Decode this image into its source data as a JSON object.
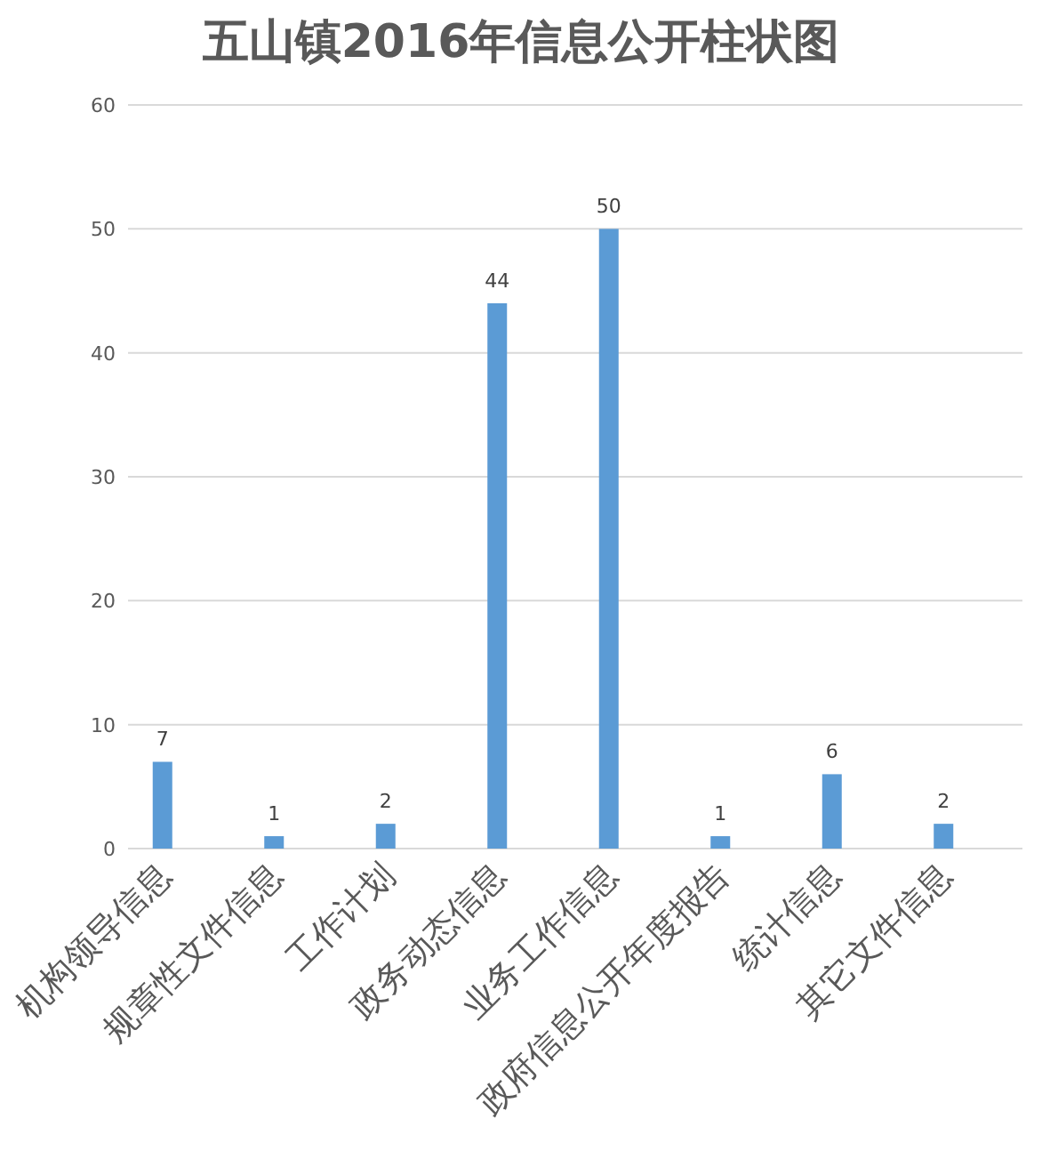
{
  "chart_data": {
    "type": "bar",
    "title": "五山镇2016年信息公开柱状图",
    "categories": [
      "机构领导信息",
      "规章性文件信息",
      "工作计划",
      "政务动态信息",
      "业务工作信息",
      "政府信息公开年度报告",
      "统计信息",
      "其它文件信息"
    ],
    "values": [
      7,
      1,
      2,
      44,
      50,
      1,
      6,
      2
    ],
    "color": "#5b9bd5",
    "ylim": [
      0,
      60
    ],
    "yticks": [
      0,
      10,
      20,
      30,
      40,
      50,
      60
    ],
    "grid": "y",
    "data_labels": true
  }
}
